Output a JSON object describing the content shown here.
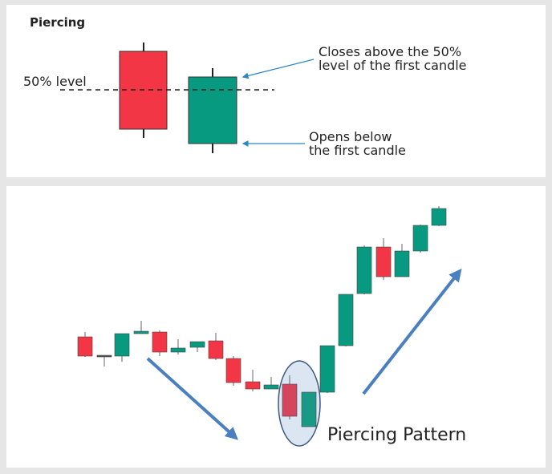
{
  "top_panel": {
    "title": "Piercing",
    "level_label": "50% level",
    "callout_close": [
      "Closes above the 50%",
      "level of the first candle"
    ],
    "callout_open": [
      "Opens below",
      "the first candle"
    ]
  },
  "bottom_panel": {
    "pattern_label": "Piercing Pattern",
    "trend_down_arrow": "arrow-down-right",
    "trend_up_arrow": "arrow-up-right"
  },
  "colors": {
    "bearish": "#f23645",
    "bullish": "#089981",
    "arrow": "#4a7fc0",
    "callout": "#2a86c4",
    "highlight": "#dce6f2"
  }
}
